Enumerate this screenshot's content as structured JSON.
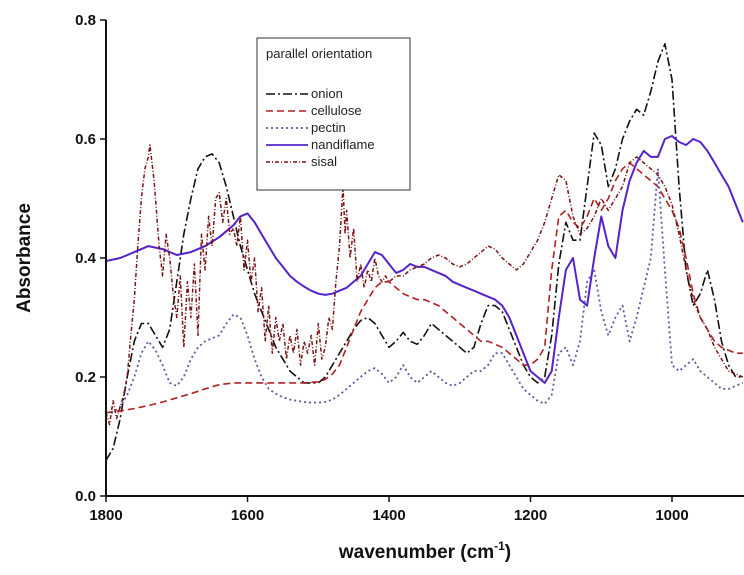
{
  "chart_data": {
    "type": "line",
    "title": "",
    "xlabel": "wavenumber (cm",
    "xlabel_sup": "-1",
    "xlabel_close": ")",
    "ylabel": "Absorbance",
    "xlim": [
      1800,
      900
    ],
    "x_reversed": true,
    "ylim": [
      0.0,
      0.8
    ],
    "x_ticks": [
      1800,
      1600,
      1400,
      1200,
      1000
    ],
    "x_tick_labels": [
      "1800",
      "1600",
      "1400",
      "1200",
      "1000"
    ],
    "y_ticks": [
      0.0,
      0.2,
      0.4,
      0.6,
      0.8
    ],
    "y_tick_labels": [
      "0.0",
      "0.2",
      "0.4",
      "0.6",
      "0.8"
    ],
    "grid": false,
    "legend": {
      "title": "parallel orientation",
      "placement": "top-center"
    },
    "series": [
      {
        "name": "onion",
        "color": "#111111",
        "dash": "9,3,2,3",
        "width": 1.6,
        "x": [
          1800,
          1790,
          1780,
          1770,
          1760,
          1750,
          1740,
          1730,
          1720,
          1710,
          1700,
          1690,
          1680,
          1670,
          1660,
          1650,
          1640,
          1630,
          1620,
          1610,
          1600,
          1590,
          1580,
          1570,
          1560,
          1550,
          1540,
          1530,
          1520,
          1510,
          1500,
          1490,
          1480,
          1470,
          1460,
          1450,
          1440,
          1430,
          1420,
          1410,
          1400,
          1390,
          1380,
          1370,
          1360,
          1350,
          1340,
          1330,
          1320,
          1310,
          1300,
          1290,
          1280,
          1270,
          1260,
          1250,
          1240,
          1230,
          1220,
          1210,
          1200,
          1190,
          1180,
          1170,
          1160,
          1150,
          1140,
          1130,
          1120,
          1110,
          1100,
          1090,
          1080,
          1070,
          1060,
          1050,
          1040,
          1030,
          1020,
          1010,
          1000,
          990,
          980,
          970,
          960,
          950,
          940,
          930,
          920,
          910,
          900
        ],
        "y": [
          0.06,
          0.08,
          0.13,
          0.2,
          0.26,
          0.29,
          0.29,
          0.27,
          0.25,
          0.28,
          0.36,
          0.44,
          0.5,
          0.55,
          0.57,
          0.575,
          0.56,
          0.52,
          0.47,
          0.42,
          0.38,
          0.34,
          0.31,
          0.28,
          0.25,
          0.23,
          0.21,
          0.2,
          0.19,
          0.19,
          0.19,
          0.2,
          0.22,
          0.24,
          0.26,
          0.28,
          0.295,
          0.3,
          0.29,
          0.27,
          0.25,
          0.26,
          0.275,
          0.26,
          0.255,
          0.27,
          0.29,
          0.28,
          0.27,
          0.26,
          0.25,
          0.24,
          0.25,
          0.29,
          0.32,
          0.32,
          0.31,
          0.28,
          0.25,
          0.22,
          0.2,
          0.19,
          0.2,
          0.27,
          0.39,
          0.46,
          0.43,
          0.43,
          0.52,
          0.61,
          0.59,
          0.52,
          0.55,
          0.6,
          0.63,
          0.65,
          0.64,
          0.68,
          0.73,
          0.76,
          0.7,
          0.52,
          0.38,
          0.32,
          0.34,
          0.38,
          0.33,
          0.26,
          0.22,
          0.2,
          0.2
        ]
      },
      {
        "name": "cellulose",
        "color": "#b02020",
        "dash": "7,4",
        "width": 1.6,
        "x": [
          1800,
          1780,
          1760,
          1740,
          1720,
          1700,
          1680,
          1660,
          1640,
          1620,
          1600,
          1580,
          1560,
          1540,
          1520,
          1500,
          1490,
          1480,
          1470,
          1460,
          1450,
          1440,
          1430,
          1420,
          1410,
          1400,
          1390,
          1380,
          1370,
          1360,
          1350,
          1340,
          1330,
          1320,
          1310,
          1300,
          1290,
          1280,
          1270,
          1260,
          1250,
          1240,
          1230,
          1220,
          1210,
          1200,
          1190,
          1180,
          1170,
          1160,
          1150,
          1140,
          1130,
          1120,
          1110,
          1100,
          1090,
          1080,
          1070,
          1060,
          1050,
          1040,
          1030,
          1020,
          1010,
          1000,
          990,
          980,
          970,
          960,
          950,
          940,
          930,
          920,
          910,
          900
        ],
        "y": [
          0.14,
          0.143,
          0.147,
          0.152,
          0.158,
          0.165,
          0.172,
          0.18,
          0.187,
          0.19,
          0.19,
          0.19,
          0.19,
          0.19,
          0.19,
          0.192,
          0.196,
          0.205,
          0.22,
          0.25,
          0.28,
          0.31,
          0.33,
          0.35,
          0.36,
          0.36,
          0.35,
          0.34,
          0.335,
          0.33,
          0.33,
          0.325,
          0.32,
          0.31,
          0.3,
          0.29,
          0.28,
          0.27,
          0.26,
          0.26,
          0.255,
          0.25,
          0.24,
          0.23,
          0.22,
          0.22,
          0.23,
          0.25,
          0.38,
          0.47,
          0.48,
          0.46,
          0.45,
          0.47,
          0.5,
          0.48,
          0.5,
          0.53,
          0.55,
          0.56,
          0.55,
          0.54,
          0.53,
          0.52,
          0.5,
          0.48,
          0.45,
          0.4,
          0.34,
          0.3,
          0.28,
          0.26,
          0.25,
          0.245,
          0.24,
          0.24
        ]
      },
      {
        "name": "pectin",
        "color": "#5a5aa0",
        "dash": "2,3",
        "width": 1.8,
        "x": [
          1800,
          1790,
          1780,
          1770,
          1760,
          1750,
          1740,
          1730,
          1720,
          1710,
          1700,
          1690,
          1680,
          1670,
          1660,
          1650,
          1640,
          1630,
          1620,
          1610,
          1600,
          1590,
          1580,
          1570,
          1560,
          1550,
          1540,
          1530,
          1520,
          1510,
          1500,
          1490,
          1480,
          1470,
          1460,
          1450,
          1440,
          1430,
          1420,
          1410,
          1400,
          1390,
          1380,
          1370,
          1360,
          1350,
          1340,
          1330,
          1320,
          1310,
          1300,
          1290,
          1280,
          1270,
          1260,
          1250,
          1240,
          1230,
          1220,
          1210,
          1200,
          1190,
          1180,
          1170,
          1160,
          1150,
          1140,
          1130,
          1120,
          1110,
          1100,
          1090,
          1080,
          1070,
          1060,
          1050,
          1040,
          1030,
          1020,
          1010,
          1000,
          990,
          980,
          970,
          960,
          950,
          940,
          930,
          920,
          910,
          900
        ],
        "y": [
          0.14,
          0.14,
          0.15,
          0.17,
          0.2,
          0.24,
          0.26,
          0.245,
          0.22,
          0.19,
          0.185,
          0.2,
          0.23,
          0.25,
          0.26,
          0.265,
          0.27,
          0.29,
          0.305,
          0.3,
          0.27,
          0.23,
          0.2,
          0.18,
          0.172,
          0.166,
          0.162,
          0.16,
          0.158,
          0.157,
          0.157,
          0.158,
          0.162,
          0.17,
          0.18,
          0.19,
          0.2,
          0.21,
          0.215,
          0.205,
          0.19,
          0.2,
          0.22,
          0.2,
          0.19,
          0.2,
          0.21,
          0.2,
          0.19,
          0.185,
          0.19,
          0.2,
          0.21,
          0.21,
          0.22,
          0.24,
          0.24,
          0.22,
          0.2,
          0.18,
          0.17,
          0.16,
          0.155,
          0.17,
          0.24,
          0.25,
          0.22,
          0.26,
          0.36,
          0.38,
          0.31,
          0.27,
          0.3,
          0.32,
          0.26,
          0.3,
          0.35,
          0.4,
          0.55,
          0.38,
          0.22,
          0.21,
          0.22,
          0.23,
          0.21,
          0.2,
          0.19,
          0.18,
          0.18,
          0.185,
          0.19
        ]
      },
      {
        "name": "nandiflame",
        "color": "#5522cc",
        "dash": "",
        "width": 2.0,
        "x": [
          1800,
          1780,
          1760,
          1740,
          1720,
          1700,
          1680,
          1660,
          1640,
          1620,
          1610,
          1600,
          1590,
          1580,
          1570,
          1560,
          1550,
          1540,
          1530,
          1520,
          1510,
          1500,
          1490,
          1480,
          1470,
          1460,
          1450,
          1440,
          1430,
          1420,
          1410,
          1400,
          1390,
          1380,
          1370,
          1360,
          1350,
          1340,
          1330,
          1320,
          1310,
          1300,
          1290,
          1280,
          1270,
          1260,
          1250,
          1240,
          1230,
          1220,
          1210,
          1200,
          1190,
          1180,
          1170,
          1160,
          1150,
          1140,
          1130,
          1120,
          1110,
          1100,
          1090,
          1080,
          1070,
          1060,
          1050,
          1040,
          1030,
          1020,
          1010,
          1000,
          990,
          980,
          970,
          960,
          950,
          940,
          930,
          920,
          910,
          900
        ],
        "y": [
          0.395,
          0.4,
          0.41,
          0.42,
          0.415,
          0.405,
          0.41,
          0.42,
          0.435,
          0.455,
          0.47,
          0.475,
          0.46,
          0.44,
          0.42,
          0.4,
          0.385,
          0.37,
          0.36,
          0.352,
          0.345,
          0.34,
          0.338,
          0.34,
          0.345,
          0.35,
          0.36,
          0.37,
          0.39,
          0.41,
          0.405,
          0.39,
          0.375,
          0.38,
          0.39,
          0.385,
          0.385,
          0.38,
          0.375,
          0.37,
          0.36,
          0.355,
          0.35,
          0.345,
          0.34,
          0.335,
          0.33,
          0.32,
          0.3,
          0.27,
          0.24,
          0.21,
          0.2,
          0.19,
          0.21,
          0.3,
          0.38,
          0.4,
          0.33,
          0.32,
          0.4,
          0.47,
          0.42,
          0.4,
          0.48,
          0.53,
          0.56,
          0.58,
          0.57,
          0.57,
          0.6,
          0.605,
          0.595,
          0.59,
          0.6,
          0.595,
          0.58,
          0.56,
          0.54,
          0.52,
          0.49,
          0.46
        ]
      },
      {
        "name": "sisal",
        "color": "#7a1414",
        "dash": "4,2,1,2",
        "width": 1.5,
        "x": [
          1800,
          1795,
          1790,
          1785,
          1780,
          1775,
          1770,
          1765,
          1760,
          1755,
          1750,
          1745,
          1740,
          1738,
          1735,
          1732,
          1730,
          1725,
          1720,
          1715,
          1710,
          1705,
          1700,
          1695,
          1690,
          1685,
          1680,
          1675,
          1670,
          1665,
          1660,
          1655,
          1650,
          1645,
          1640,
          1635,
          1630,
          1625,
          1620,
          1615,
          1610,
          1605,
          1600,
          1595,
          1590,
          1585,
          1580,
          1575,
          1570,
          1565,
          1560,
          1555,
          1550,
          1545,
          1540,
          1535,
          1530,
          1525,
          1520,
          1515,
          1510,
          1505,
          1500,
          1495,
          1490,
          1485,
          1480,
          1475,
          1470,
          1467,
          1465,
          1462,
          1460,
          1455,
          1450,
          1445,
          1440,
          1435,
          1430,
          1425,
          1420,
          1415,
          1410,
          1405,
          1400,
          1390,
          1380,
          1370,
          1360,
          1350,
          1340,
          1330,
          1320,
          1310,
          1300,
          1290,
          1280,
          1270,
          1260,
          1250,
          1240,
          1230,
          1220,
          1210,
          1200,
          1190,
          1180,
          1170,
          1160,
          1150,
          1140,
          1130,
          1120,
          1110,
          1100,
          1090,
          1080,
          1070,
          1060,
          1050,
          1040,
          1030,
          1020,
          1010,
          1000,
          990,
          980,
          970,
          960,
          950,
          940,
          930,
          920,
          910,
          900
        ],
        "y": [
          0.14,
          0.12,
          0.16,
          0.13,
          0.15,
          0.17,
          0.2,
          0.27,
          0.33,
          0.42,
          0.5,
          0.55,
          0.57,
          0.59,
          0.56,
          0.53,
          0.5,
          0.42,
          0.37,
          0.44,
          0.4,
          0.34,
          0.3,
          0.37,
          0.25,
          0.36,
          0.3,
          0.39,
          0.27,
          0.44,
          0.38,
          0.47,
          0.42,
          0.5,
          0.51,
          0.46,
          0.5,
          0.44,
          0.45,
          0.42,
          0.47,
          0.38,
          0.43,
          0.36,
          0.4,
          0.31,
          0.35,
          0.26,
          0.32,
          0.24,
          0.3,
          0.26,
          0.29,
          0.23,
          0.27,
          0.24,
          0.28,
          0.22,
          0.26,
          0.24,
          0.27,
          0.22,
          0.29,
          0.23,
          0.25,
          0.3,
          0.28,
          0.36,
          0.42,
          0.48,
          0.52,
          0.44,
          0.48,
          0.4,
          0.45,
          0.36,
          0.39,
          0.35,
          0.38,
          0.36,
          0.4,
          0.37,
          0.36,
          0.37,
          0.36,
          0.37,
          0.37,
          0.38,
          0.385,
          0.39,
          0.4,
          0.405,
          0.4,
          0.39,
          0.385,
          0.39,
          0.4,
          0.41,
          0.42,
          0.415,
          0.4,
          0.39,
          0.38,
          0.39,
          0.41,
          0.43,
          0.46,
          0.5,
          0.54,
          0.53,
          0.47,
          0.44,
          0.45,
          0.47,
          0.5,
          0.48,
          0.5,
          0.52,
          0.56,
          0.57,
          0.56,
          0.55,
          0.54,
          0.52,
          0.49,
          0.44,
          0.38,
          0.33,
          0.3,
          0.28,
          0.25,
          0.23,
          0.21,
          0.205,
          0.2
        ]
      }
    ]
  }
}
